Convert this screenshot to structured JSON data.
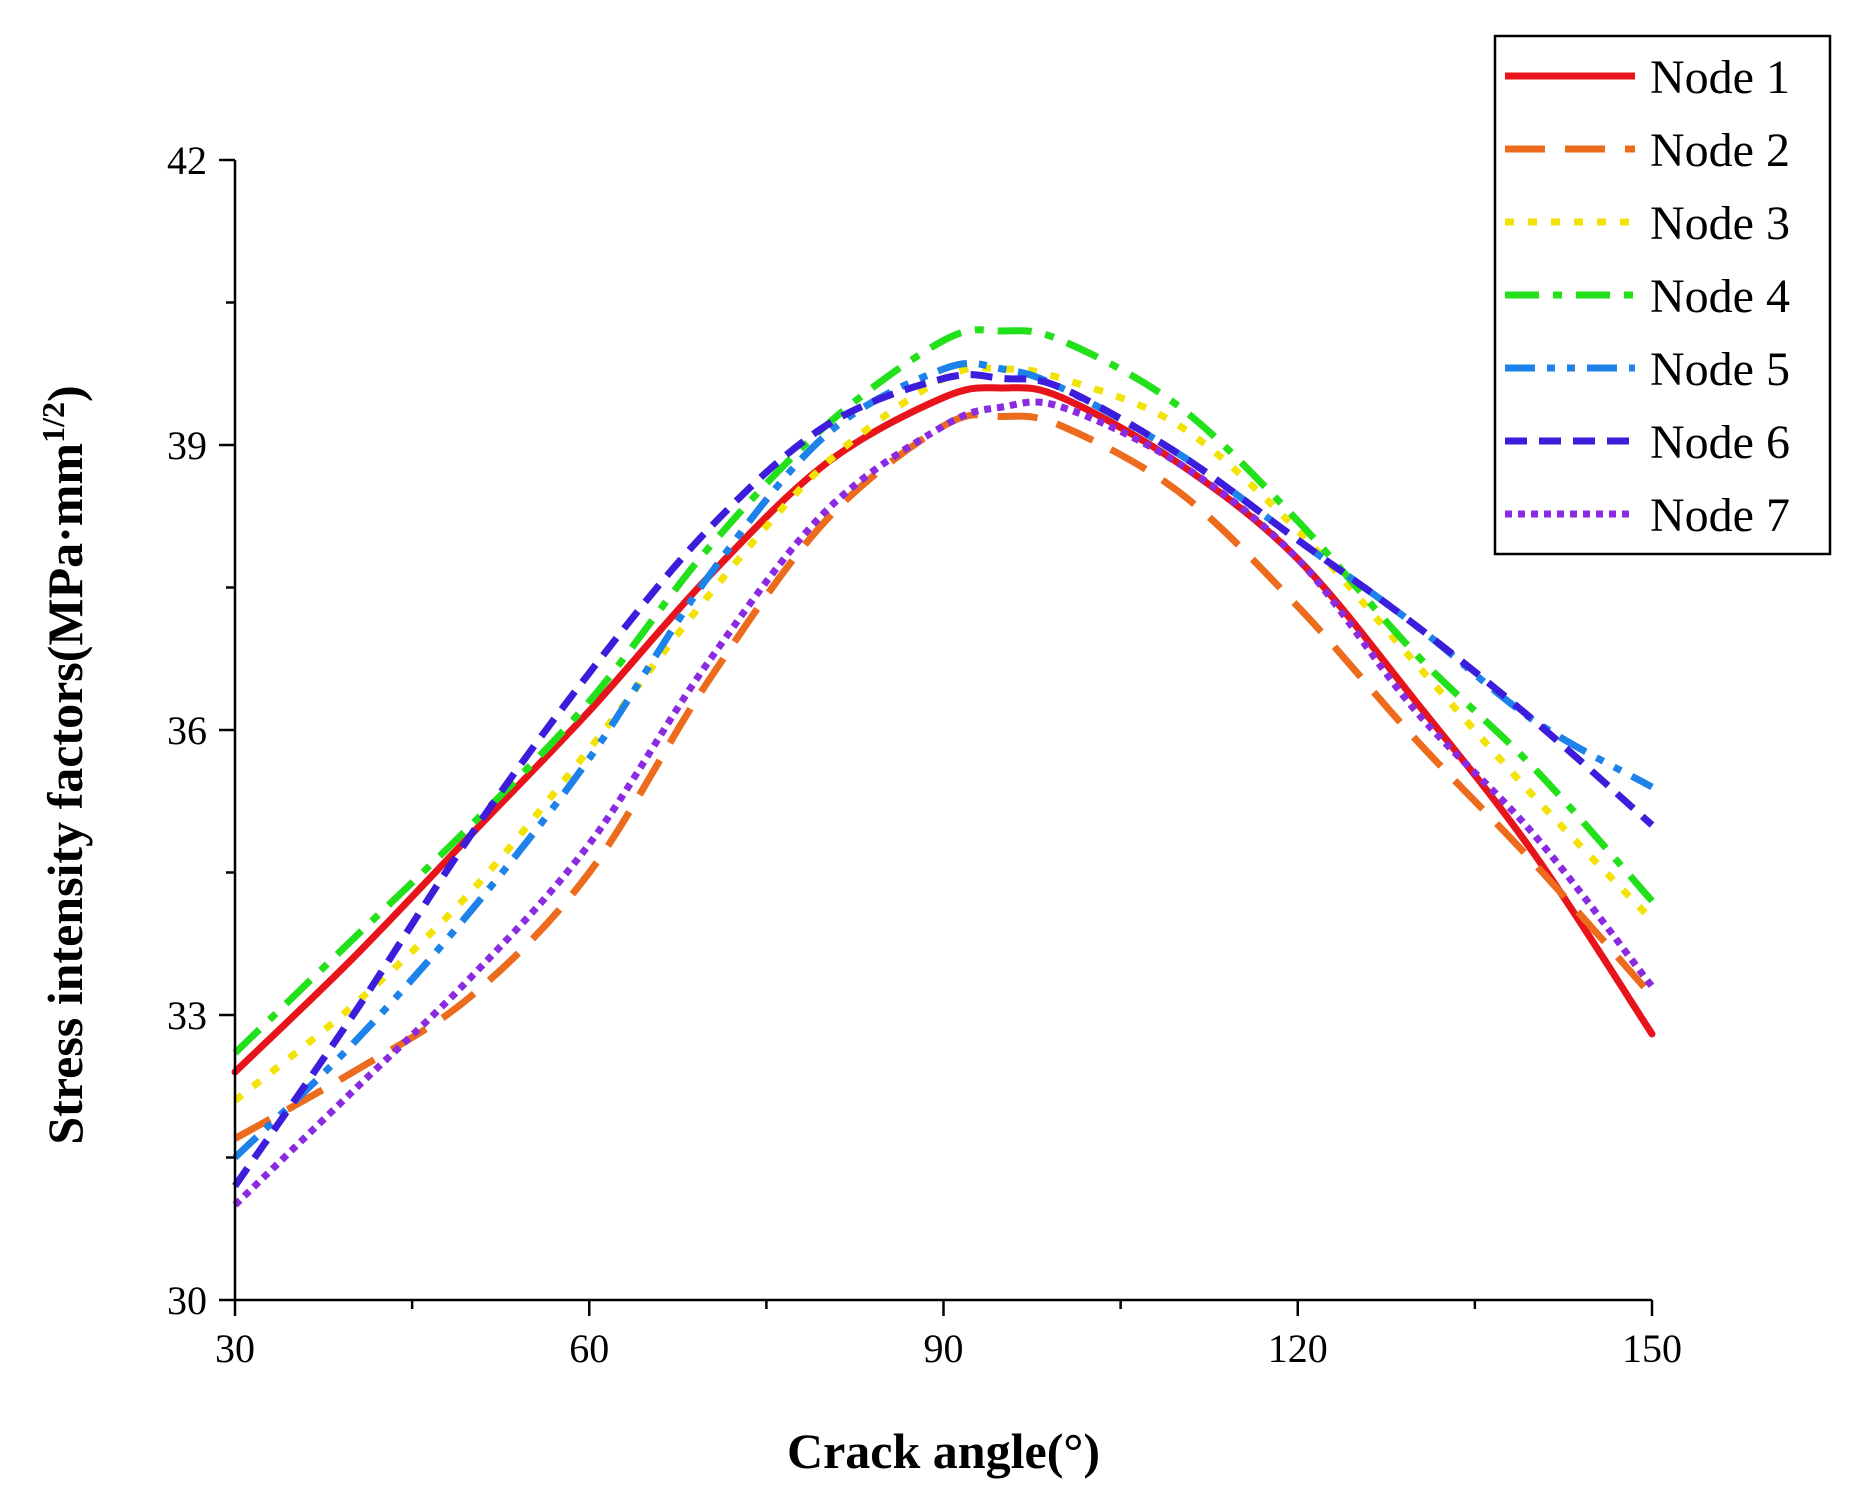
{
  "chart_data": {
    "type": "line",
    "title": "",
    "xlabel": "Crack angle(°)",
    "ylabel_main": "Stress intensity factors(MPa·mm",
    "ylabel_sup": "1/2",
    "ylabel_close": ")",
    "xlim": [
      30,
      150
    ],
    "ylim": [
      30,
      42
    ],
    "xticks": [
      30,
      60,
      90,
      120,
      150
    ],
    "yticks": [
      30,
      33,
      36,
      39,
      42
    ],
    "xtick_labels": [
      "30",
      "60",
      "90",
      "120",
      "150"
    ],
    "ytick_labels": [
      "30",
      "33",
      "36",
      "39",
      "42"
    ],
    "legend_position": "top-right",
    "x": [
      30,
      40,
      50,
      60,
      70,
      80,
      90,
      95,
      100,
      110,
      120,
      130,
      140,
      150
    ],
    "series": [
      {
        "name": "Node 1",
        "color": "#e8141b",
        "dash": "solid",
        "width": 7,
        "values": [
          32.4,
          33.6,
          34.9,
          36.2,
          37.6,
          38.8,
          39.5,
          39.6,
          39.5,
          38.8,
          37.8,
          36.3,
          34.7,
          32.8
        ]
      },
      {
        "name": "Node 2",
        "color": "#ec6b1c",
        "dash": "long-dash",
        "width": 7,
        "values": [
          31.7,
          32.4,
          33.2,
          34.5,
          36.5,
          38.2,
          39.2,
          39.3,
          39.2,
          38.5,
          37.3,
          35.9,
          34.6,
          33.2
        ]
      },
      {
        "name": "Node 3",
        "color": "#f2e205",
        "dash": "dot",
        "width": 7,
        "values": [
          32.1,
          33.1,
          34.3,
          35.8,
          37.4,
          38.8,
          39.7,
          39.8,
          39.7,
          39.2,
          38.1,
          36.7,
          35.3,
          34.0
        ]
      },
      {
        "name": "Node 4",
        "color": "#22e01a",
        "dash": "dash-dot",
        "width": 7,
        "values": [
          32.6,
          33.8,
          35.0,
          36.3,
          37.9,
          39.2,
          40.1,
          40.2,
          40.1,
          39.4,
          38.2,
          36.8,
          35.6,
          34.2
        ]
      },
      {
        "name": "Node 5",
        "color": "#1d82ea",
        "dash": "dash-dot-dot",
        "width": 7,
        "values": [
          31.5,
          32.7,
          34.1,
          35.7,
          37.6,
          39.1,
          39.8,
          39.8,
          39.6,
          38.9,
          38.0,
          37.1,
          36.1,
          35.4
        ]
      },
      {
        "name": "Node 6",
        "color": "#3b1ddb",
        "dash": "short-dash",
        "width": 7,
        "values": [
          31.2,
          33.0,
          34.9,
          36.6,
          38.1,
          39.2,
          39.7,
          39.7,
          39.6,
          38.9,
          38.0,
          37.1,
          36.1,
          35.0
        ]
      },
      {
        "name": "Node 7",
        "color": "#8a2be2",
        "dash": "short-dot",
        "width": 7,
        "values": [
          31.0,
          32.2,
          33.4,
          34.8,
          36.7,
          38.3,
          39.2,
          39.4,
          39.4,
          38.8,
          37.8,
          36.2,
          34.9,
          33.3
        ]
      }
    ]
  }
}
